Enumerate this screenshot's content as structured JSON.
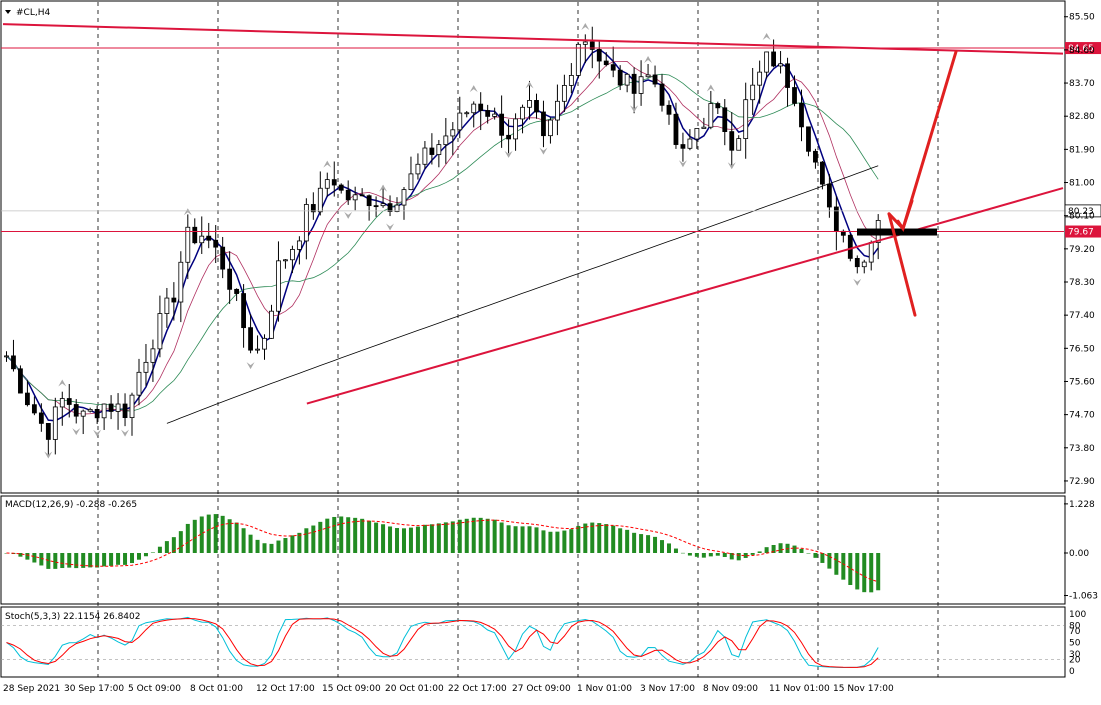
{
  "chart_data": {
    "type": "candlestick",
    "symbol_label": "#CL,H4",
    "main_panel": {
      "y_ticks": [
        "85.50",
        "84.60",
        "83.70",
        "82.80",
        "81.90",
        "81.00",
        "80.10",
        "79.20",
        "78.30",
        "77.40",
        "76.50",
        "75.60",
        "74.70",
        "73.80",
        "72.90"
      ],
      "y_range": [
        72.6,
        85.9
      ],
      "current_price_label": "80.23",
      "current_price": 80.23,
      "horizontal_levels": [
        {
          "price": 84.65,
          "label": "84.65",
          "color": "#dc143c"
        },
        {
          "price": 79.67,
          "label": "79.67",
          "color": "#dc143c"
        }
      ],
      "trendlines": [
        {
          "name": "upper-resistance",
          "points": [
            [
              0,
              85.3
            ],
            [
              150,
              84.5
            ]
          ],
          "color": "#dc143c"
        },
        {
          "name": "lower-support",
          "points": [
            [
              43,
              75.0
            ],
            [
              150,
              80.85
            ]
          ],
          "color": "#dc143c"
        }
      ],
      "projection_arrows_color": "#e02020",
      "support_zone_color": "#000000",
      "candle_up_color": "#000000",
      "candle_down_color": "#000000"
    },
    "x_ticks": [
      "28 Sep 2021",
      "30 Sep 17:00",
      "5 Oct 09:00",
      "8 Oct 01:00",
      "12 Oct 17:00",
      "15 Oct 09:00",
      "20 Oct 01:00",
      "22 Oct 17:00",
      "27 Oct 09:00",
      "1 Nov 01:00",
      "3 Nov 17:00",
      "8 Nov 09:00",
      "11 Nov 01:00",
      "15 Nov 17:00"
    ],
    "macd_panel": {
      "label": "MACD(12,26,9) -0.288 -0.265",
      "y_ticks": [
        "1.228",
        "0.00",
        "-1.063"
      ],
      "y_range": [
        -1.25,
        1.4
      ],
      "histogram_color": "#228b22",
      "signal_color": "#ff0000"
    },
    "stoch_panel": {
      "label": "Stoch(5,3,3) 22.1154 26.8402",
      "y_ticks": [
        "100",
        "80",
        "70",
        "50",
        "30",
        "20",
        "0"
      ],
      "main_color": "#00bfd8",
      "signal_color": "#ff0000"
    }
  }
}
